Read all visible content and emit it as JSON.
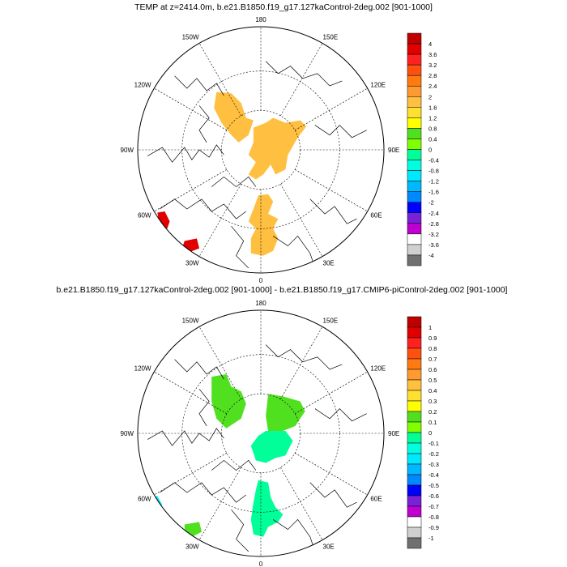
{
  "chart_data": [
    {
      "type": "heatmap",
      "projection": "polar-stereographic-north",
      "title": "TEMP at z=2414.0m, b.e21.B1850.f19_g17.127kaControl-2deg.002 [901-1000]",
      "lon_labels": [
        "180",
        "150E",
        "120E",
        "90E",
        "60E",
        "30E",
        "0",
        "30W",
        "60W",
        "90W",
        "120W",
        "150W"
      ],
      "colorbar_levels": [
        "4",
        "3.6",
        "3.2",
        "2.8",
        "2.4",
        "2",
        "1.6",
        "1.2",
        "0.8",
        "0.4",
        "0",
        "-0.4",
        "-0.8",
        "-1.2",
        "-1.6",
        "-2",
        "-2.4",
        "-2.8",
        "-3.2",
        "-3.6",
        "-4"
      ],
      "colorbar_colors": [
        "#c00000",
        "#e00000",
        "#ff2020",
        "#ff5010",
        "#ff7a10",
        "#ff9a30",
        "#ffbf40",
        "#ffe030",
        "#ffff00",
        "#50e020",
        "#80ff00",
        "#00ff99",
        "#00ffe0",
        "#00e8ff",
        "#00b8ff",
        "#0088ff",
        "#0000ff",
        "#7a20d8",
        "#c000d0",
        "#ffffff",
        "#d0d0d0",
        "#707070"
      ],
      "regions": [
        {
          "name": "western-arctic-warm-patch",
          "value": 2.2,
          "level_index": 5
        },
        {
          "name": "central-arctic-warm-patch",
          "value": 2.2,
          "level_index": 5
        },
        {
          "name": "barents-warm-patch",
          "value": 2.2,
          "level_index": 5
        },
        {
          "name": "labrador-hot-patch",
          "value": 4.0,
          "level_index": 0
        },
        {
          "name": "greenland-sea-hot-patch",
          "value": 4.0,
          "level_index": 0
        }
      ]
    },
    {
      "type": "heatmap",
      "projection": "polar-stereographic-north",
      "title": "b.e21.B1850.f19_g17.127kaControl-2deg.002 [901-1000] - b.e21.B1850.f19_g17.CMIP6-piControl-2deg.002 [901-1000]",
      "lon_labels": [
        "180",
        "150E",
        "120E",
        "90E",
        "60E",
        "30E",
        "0",
        "30W",
        "60W",
        "90W",
        "120W",
        "150W"
      ],
      "colorbar_levels": [
        "1",
        "0.9",
        "0.8",
        "0.7",
        "0.6",
        "0.5",
        "0.4",
        "0.3",
        "0.2",
        "0.1",
        "0",
        "-0.1",
        "-0.2",
        "-0.3",
        "-0.4",
        "-0.5",
        "-0.6",
        "-0.7",
        "-0.8",
        "-0.9",
        "-1"
      ],
      "colorbar_colors": [
        "#c00000",
        "#e00000",
        "#ff2020",
        "#ff5010",
        "#ff7a10",
        "#ff9a30",
        "#ffbf40",
        "#ffe030",
        "#ffff00",
        "#50e020",
        "#80ff00",
        "#00ff99",
        "#00ffe0",
        "#00e8ff",
        "#00b8ff",
        "#0088ff",
        "#0000ff",
        "#7a20d8",
        "#c000d0",
        "#ffffff",
        "#d0d0d0",
        "#707070"
      ],
      "regions": [
        {
          "name": "western-arctic-yellow-patch",
          "value": 0.25,
          "level_index": 8
        },
        {
          "name": "central-arctic-yellow-patch",
          "value": 0.25,
          "level_index": 8
        },
        {
          "name": "central-arctic-green-patch",
          "value": 0.05,
          "level_index": 10
        },
        {
          "name": "barents-green-patch",
          "value": 0.05,
          "level_index": 10
        },
        {
          "name": "labrador-cyan-patch",
          "value": -0.15,
          "level_index": 12
        },
        {
          "name": "greenland-sea-yellow-patch",
          "value": 0.25,
          "level_index": 8
        }
      ]
    }
  ]
}
